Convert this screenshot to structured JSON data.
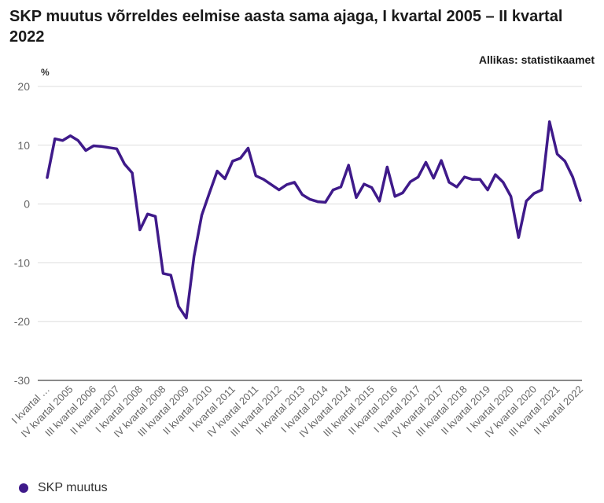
{
  "header": {
    "title": "SKP muutus võrreldes eelmise aasta sama ajaga, I kvartal 2005 – II kvartal 2022",
    "source": "Allikas: statistikaamet",
    "unit": "%"
  },
  "legend": {
    "label": "SKP muutus",
    "color": "#3f1a8a"
  },
  "chart_data": {
    "type": "line",
    "title": "SKP muutus võrreldes eelmise aasta sama ajaga, I kvartal 2005 – II kvartal 2022",
    "ylabel": "%",
    "xlabel": "",
    "ylim": [
      -30,
      20
    ],
    "yticks": [
      20,
      10,
      0,
      -10,
      -20,
      -30
    ],
    "grid": true,
    "legend_position": "bottom-left",
    "x_tick_labels": [
      "I kvartal …",
      "IV kvartal 2005",
      "III kvartal 2006",
      "II kvartal 2007",
      "I kvartal 2008",
      "IV kvartal 2008",
      "III kvartal 2009",
      "II kvartal 2010",
      "I kvartal 2011",
      "IV kvartal 2011",
      "III kvartal 2012",
      "II kvartal 2013",
      "I kvartal 2014",
      "IV kvartal 2014",
      "III kvartal 2015",
      "II kvartal 2016",
      "I kvartal 2017",
      "IV kvartal 2017",
      "III kvartal 2018",
      "II kvartal 2019",
      "I kvartal 2020",
      "IV kvartal 2020",
      "III kvartal 2021",
      "II kvartal 2022"
    ],
    "series": [
      {
        "name": "SKP muutus",
        "color": "#3f1a8a",
        "values": [
          4.5,
          11.1,
          10.8,
          11.6,
          10.8,
          9.1,
          9.9,
          9.8,
          9.6,
          9.4,
          6.8,
          5.3,
          -4.4,
          -1.7,
          -2.1,
          -11.8,
          -12.1,
          -17.4,
          -19.4,
          -8.9,
          -1.9,
          1.9,
          5.6,
          4.3,
          7.3,
          7.8,
          9.5,
          4.8,
          4.2,
          3.3,
          2.4,
          3.3,
          3.7,
          1.6,
          0.8,
          0.4,
          0.3,
          2.4,
          2.9,
          6.6,
          1.1,
          3.4,
          2.8,
          0.5,
          6.3,
          1.3,
          1.9,
          3.8,
          4.6,
          7.1,
          4.4,
          7.4,
          3.7,
          2.9,
          4.6,
          4.2,
          4.2,
          2.4,
          5.0,
          3.7,
          1.3,
          -5.7,
          0.5,
          1.8,
          2.4,
          14.0,
          8.5,
          7.3,
          4.6,
          0.6
        ]
      }
    ]
  }
}
